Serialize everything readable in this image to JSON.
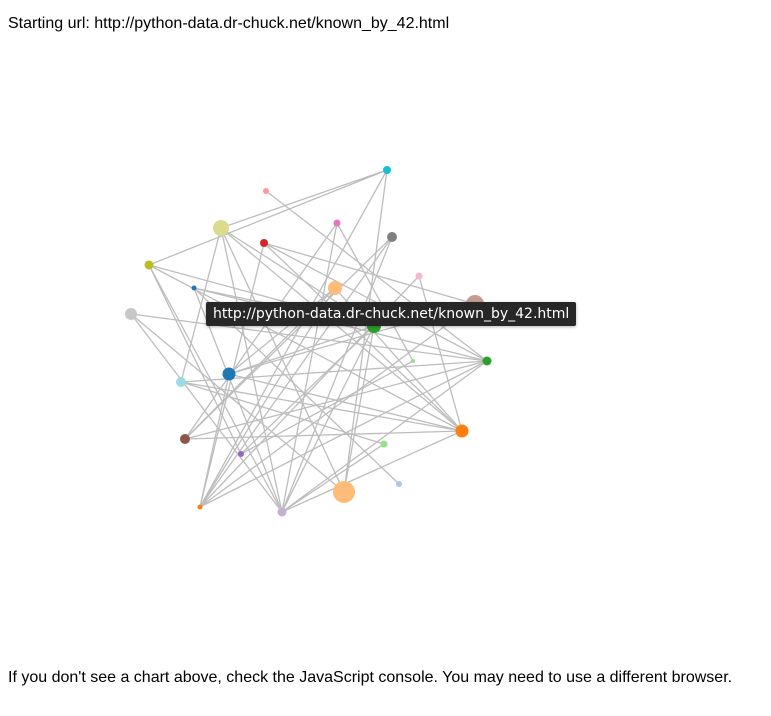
{
  "header": {
    "starting_url_text": "Starting url: http://python-data.dr-chuck.net/known_by_42.html"
  },
  "tooltip": {
    "text": "http://python-data.dr-chuck.net/known_by_42.html"
  },
  "footer": {
    "text": "If you don't see a chart above, check the JavaScript console. You may need to use a different browser."
  },
  "graph": {
    "link_color": "#bdbdbd",
    "node_colors": [
      "#17becf",
      "#ff9896",
      "#dbdb8d",
      "#e377c2",
      "#d62728",
      "#7f7f7f",
      "#bcbd22",
      "#f7b6d2",
      "#1f77b4",
      "#ffbb78",
      "#c49c94",
      "#c7c7c7",
      "#2ca02c",
      "#98df8a",
      "#9edae5",
      "#1f77b4",
      "#2ca02c",
      "#8c564b",
      "#ff7f0e",
      "#98df8a",
      "#9467bd",
      "#aec7e8",
      "#ffbb78",
      "#ff7f0e",
      "#c5b0d5"
    ]
  }
}
